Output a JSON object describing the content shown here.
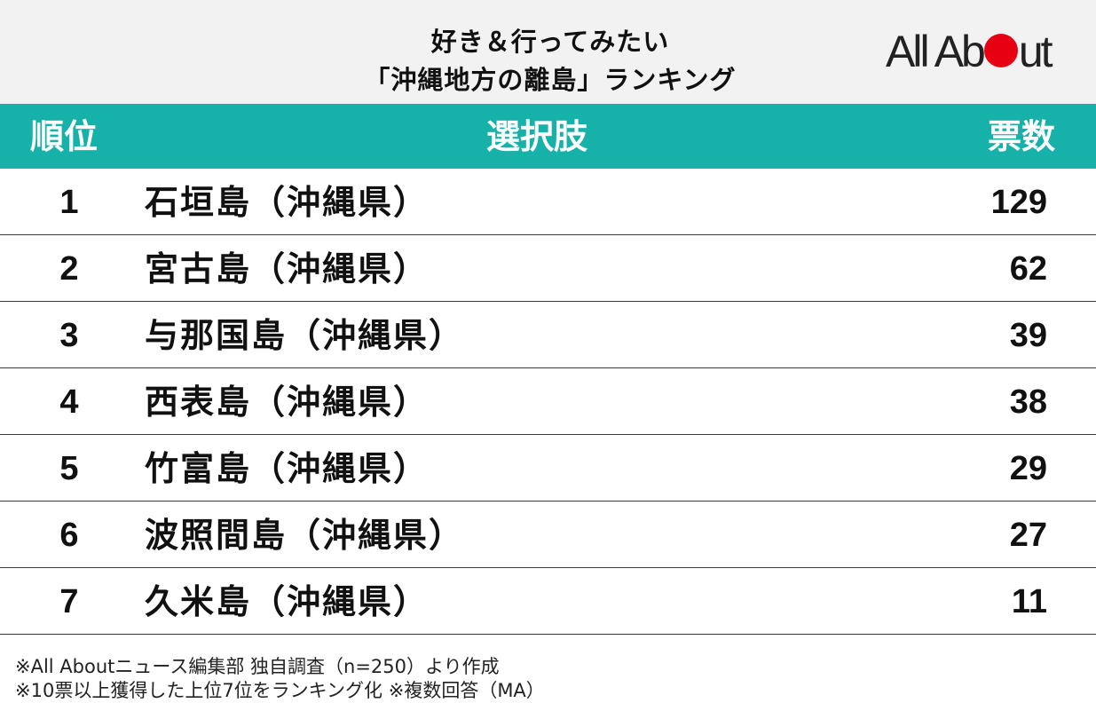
{
  "title": {
    "line1": "好き＆行ってみたい",
    "line2": "「沖縄地方の離島」ランキング"
  },
  "logo": {
    "text_before": "All Ab",
    "text_after": "ut",
    "dot_color": "#e60012"
  },
  "table": {
    "header_color": "#16b2aa",
    "columns": [
      "順位",
      "選択肢",
      "票数"
    ],
    "rows": [
      {
        "rank": "1",
        "name": "石垣島（沖縄県）",
        "votes": "129"
      },
      {
        "rank": "2",
        "name": "宮古島（沖縄県）",
        "votes": "62"
      },
      {
        "rank": "3",
        "name": "与那国島（沖縄県）",
        "votes": "39"
      },
      {
        "rank": "4",
        "name": "西表島（沖縄県）",
        "votes": "38"
      },
      {
        "rank": "5",
        "name": "竹富島（沖縄県）",
        "votes": "29"
      },
      {
        "rank": "6",
        "name": "波照間島（沖縄県）",
        "votes": "27"
      },
      {
        "rank": "7",
        "name": "久米島（沖縄県）",
        "votes": "11"
      }
    ]
  },
  "footnotes": {
    "line1": "※All Aboutニュース編集部 独自調査（n=250）より作成",
    "line2": "※10票以上獲得した上位7位をランキング化 ※複数回答（MA）"
  }
}
